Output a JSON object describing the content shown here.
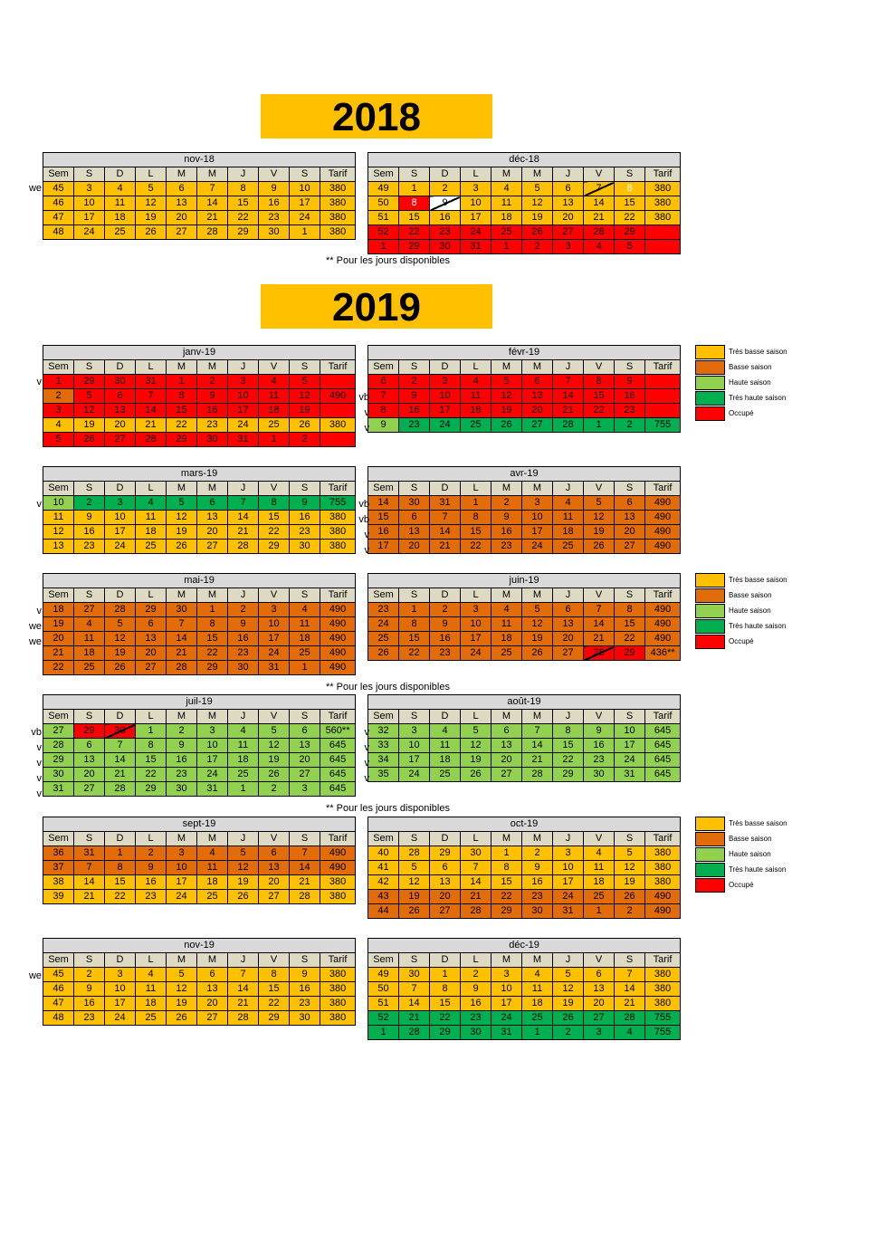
{
  "headers": [
    "Sem",
    "S",
    "D",
    "L",
    "M",
    "M",
    "J",
    "V",
    "S",
    "Tarif"
  ],
  "years": [
    "2018",
    "2019"
  ],
  "footnote": "** Pour les jours disponibles",
  "legend_items": [
    {
      "label": "Très basse saison",
      "color": "#ffc000"
    },
    {
      "label": "Basse saison",
      "color": "#e26b0a"
    },
    {
      "label": "Haute saison",
      "color": "#92d050"
    },
    {
      "label": "Très haute saison",
      "color": "#00b050"
    },
    {
      "label": "Occupé",
      "color": "#ff0000"
    }
  ],
  "colors": {
    "Y": "#ffc000",
    "O": "#e26b0a",
    "G": "#92d050",
    "D": "#00b050",
    "R": "#ff0000",
    "W": "#ffffff"
  },
  "months": [
    {
      "title": "nov-18",
      "rows": [
        [
          "45",
          "3",
          "4",
          "5",
          "6",
          "7",
          "8",
          "9",
          "10",
          "380"
        ],
        [
          "46",
          "10",
          "11",
          "12",
          "13",
          "14",
          "15",
          "16",
          "17",
          "380"
        ],
        [
          "47",
          "17",
          "18",
          "19",
          "20",
          "21",
          "22",
          "23",
          "24",
          "380"
        ],
        [
          "48",
          "24",
          "25",
          "26",
          "27",
          "28",
          "29",
          "30",
          "1",
          "380"
        ]
      ]
    },
    {
      "title": "déc-18",
      "rows": [
        [
          "49",
          "1",
          "2",
          "3",
          "4",
          "5",
          "6",
          "7",
          "8",
          "380"
        ],
        [
          "50",
          "8",
          "9",
          "10",
          "11",
          "12",
          "13",
          "14",
          "15",
          "380"
        ],
        [
          "51",
          "15",
          "16",
          "17",
          "18",
          "19",
          "20",
          "21",
          "22",
          "380"
        ],
        [
          "52",
          "22",
          "23",
          "24",
          "25",
          "26",
          "27",
          "28",
          "29",
          ""
        ],
        [
          "1",
          "29",
          "30",
          "31",
          "1",
          "2",
          "3",
          "4",
          "5",
          ""
        ]
      ]
    },
    {
      "title": "janv-19",
      "rows": [
        [
          "1",
          "29",
          "30",
          "31",
          "1",
          "2",
          "3",
          "4",
          "5",
          ""
        ],
        [
          "2",
          "5",
          "6",
          "7",
          "8",
          "9",
          "10",
          "11",
          "12",
          "490"
        ],
        [
          "3",
          "12",
          "13",
          "14",
          "15",
          "16",
          "17",
          "18",
          "19",
          ""
        ],
        [
          "4",
          "19",
          "20",
          "21",
          "22",
          "23",
          "24",
          "25",
          "26",
          "380"
        ],
        [
          "5",
          "26",
          "27",
          "28",
          "29",
          "30",
          "31",
          "1",
          "2",
          ""
        ]
      ]
    },
    {
      "title": "févr-19",
      "rows": [
        [
          "6",
          "2",
          "3",
          "4",
          "5",
          "6",
          "7",
          "8",
          "9",
          ""
        ],
        [
          "7",
          "9",
          "10",
          "11",
          "12",
          "13",
          "14",
          "15",
          "16",
          ""
        ],
        [
          "8",
          "16",
          "17",
          "18",
          "19",
          "20",
          "21",
          "22",
          "23",
          ""
        ],
        [
          "9",
          "23",
          "24",
          "25",
          "26",
          "27",
          "28",
          "1",
          "2",
          "755"
        ]
      ]
    },
    {
      "title": "mars-19",
      "rows": [
        [
          "10",
          "2",
          "3",
          "4",
          "5",
          "6",
          "7",
          "8",
          "9",
          "755"
        ],
        [
          "11",
          "9",
          "10",
          "11",
          "12",
          "13",
          "14",
          "15",
          "16",
          "380"
        ],
        [
          "12",
          "16",
          "17",
          "18",
          "19",
          "20",
          "21",
          "22",
          "23",
          "380"
        ],
        [
          "13",
          "23",
          "24",
          "25",
          "26",
          "27",
          "28",
          "29",
          "30",
          "380"
        ]
      ]
    },
    {
      "title": "avr-19",
      "rows": [
        [
          "14",
          "30",
          "31",
          "1",
          "2",
          "3",
          "4",
          "5",
          "6",
          "490"
        ],
        [
          "15",
          "6",
          "7",
          "8",
          "9",
          "10",
          "11",
          "12",
          "13",
          "490"
        ],
        [
          "16",
          "13",
          "14",
          "15",
          "16",
          "17",
          "18",
          "19",
          "20",
          "490"
        ],
        [
          "17",
          "20",
          "21",
          "22",
          "23",
          "24",
          "25",
          "26",
          "27",
          "490"
        ]
      ]
    },
    {
      "title": "mai-19",
      "rows": [
        [
          "18",
          "27",
          "28",
          "29",
          "30",
          "1",
          "2",
          "3",
          "4",
          "490"
        ],
        [
          "19",
          "4",
          "5",
          "6",
          "7",
          "8",
          "9",
          "10",
          "11",
          "490"
        ],
        [
          "20",
          "11",
          "12",
          "13",
          "14",
          "15",
          "16",
          "17",
          "18",
          "490"
        ],
        [
          "21",
          "18",
          "19",
          "20",
          "21",
          "22",
          "23",
          "24",
          "25",
          "490"
        ],
        [
          "22",
          "25",
          "26",
          "27",
          "28",
          "29",
          "30",
          "31",
          "1",
          "490"
        ]
      ]
    },
    {
      "title": "juin-19",
      "rows": [
        [
          "23",
          "1",
          "2",
          "3",
          "4",
          "5",
          "6",
          "7",
          "8",
          "490"
        ],
        [
          "24",
          "8",
          "9",
          "10",
          "11",
          "12",
          "13",
          "14",
          "15",
          "490"
        ],
        [
          "25",
          "15",
          "16",
          "17",
          "18",
          "19",
          "20",
          "21",
          "22",
          "490"
        ],
        [
          "26",
          "22",
          "23",
          "24",
          "25",
          "26",
          "27",
          "28",
          "29",
          "436**"
        ]
      ]
    },
    {
      "title": "juil-19",
      "rows": [
        [
          "27",
          "29",
          "30",
          "1",
          "2",
          "3",
          "4",
          "5",
          "6",
          "560**"
        ],
        [
          "28",
          "6",
          "7",
          "8",
          "9",
          "10",
          "11",
          "12",
          "13",
          "645"
        ],
        [
          "29",
          "13",
          "14",
          "15",
          "16",
          "17",
          "18",
          "19",
          "20",
          "645"
        ],
        [
          "30",
          "20",
          "21",
          "22",
          "23",
          "24",
          "25",
          "26",
          "27",
          "645"
        ],
        [
          "31",
          "27",
          "28",
          "29",
          "30",
          "31",
          "1",
          "2",
          "3",
          "645"
        ]
      ]
    },
    {
      "title": "août-19",
      "rows": [
        [
          "32",
          "3",
          "4",
          "5",
          "6",
          "7",
          "8",
          "9",
          "10",
          "645"
        ],
        [
          "33",
          "10",
          "11",
          "12",
          "13",
          "14",
          "15",
          "16",
          "17",
          "645"
        ],
        [
          "34",
          "17",
          "18",
          "19",
          "20",
          "21",
          "22",
          "23",
          "24",
          "645"
        ],
        [
          "35",
          "24",
          "25",
          "26",
          "27",
          "28",
          "29",
          "30",
          "31",
          "645"
        ]
      ]
    },
    {
      "title": "sept-19",
      "rows": [
        [
          "36",
          "31",
          "1",
          "2",
          "3",
          "4",
          "5",
          "6",
          "7",
          "490"
        ],
        [
          "37",
          "7",
          "8",
          "9",
          "10",
          "11",
          "12",
          "13",
          "14",
          "490"
        ],
        [
          "38",
          "14",
          "15",
          "16",
          "17",
          "18",
          "19",
          "20",
          "21",
          "380"
        ],
        [
          "39",
          "21",
          "22",
          "23",
          "24",
          "25",
          "26",
          "27",
          "28",
          "380"
        ]
      ]
    },
    {
      "title": "oct-19",
      "rows": [
        [
          "40",
          "28",
          "29",
          "30",
          "1",
          "2",
          "3",
          "4",
          "5",
          "380"
        ],
        [
          "41",
          "5",
          "6",
          "7",
          "8",
          "9",
          "10",
          "11",
          "12",
          "380"
        ],
        [
          "42",
          "12",
          "13",
          "14",
          "15",
          "16",
          "17",
          "18",
          "19",
          "380"
        ],
        [
          "43",
          "19",
          "20",
          "21",
          "22",
          "23",
          "24",
          "25",
          "26",
          "490"
        ],
        [
          "44",
          "26",
          "27",
          "28",
          "29",
          "30",
          "31",
          "1",
          "2",
          "490"
        ]
      ]
    },
    {
      "title": "nov-19",
      "rows": [
        [
          "45",
          "2",
          "3",
          "4",
          "5",
          "6",
          "7",
          "8",
          "9",
          "380"
        ],
        [
          "46",
          "9",
          "10",
          "11",
          "12",
          "13",
          "14",
          "15",
          "16",
          "380"
        ],
        [
          "47",
          "16",
          "17",
          "18",
          "19",
          "20",
          "21",
          "22",
          "23",
          "380"
        ],
        [
          "48",
          "23",
          "24",
          "25",
          "26",
          "27",
          "28",
          "29",
          "30",
          "380"
        ]
      ]
    },
    {
      "title": "déc-19",
      "rows": [
        [
          "49",
          "30",
          "1",
          "2",
          "3",
          "4",
          "5",
          "6",
          "7",
          "380"
        ],
        [
          "50",
          "7",
          "8",
          "9",
          "10",
          "11",
          "12",
          "13",
          "14",
          "380"
        ],
        [
          "51",
          "14",
          "15",
          "16",
          "17",
          "18",
          "19",
          "20",
          "21",
          "380"
        ],
        [
          "52",
          "21",
          "22",
          "23",
          "24",
          "25",
          "26",
          "27",
          "28",
          "755"
        ],
        [
          "1",
          "28",
          "29",
          "30",
          "31",
          "1",
          "2",
          "3",
          "4",
          "755"
        ]
      ]
    }
  ],
  "side_labels": {
    "nov-18": [
      "we",
      "",
      "",
      ""
    ],
    "janv-19": [
      "v",
      "",
      "",
      "",
      ""
    ],
    "févr-19": [
      "vb",
      "v",
      "v",
      ""
    ],
    "mars-19": [
      "v",
      "",
      "",
      ""
    ],
    "avr-19": [
      "vb",
      "vb",
      "v",
      "v"
    ],
    "mai-19": [
      "v",
      "we",
      "we",
      "",
      ""
    ],
    "juil-19": [
      "vb",
      "v",
      "v",
      "v",
      "v"
    ],
    "août-19": [
      "v",
      "v",
      "v",
      "v"
    ],
    "nov-19": [
      "we",
      "",
      "",
      ""
    ]
  }
}
